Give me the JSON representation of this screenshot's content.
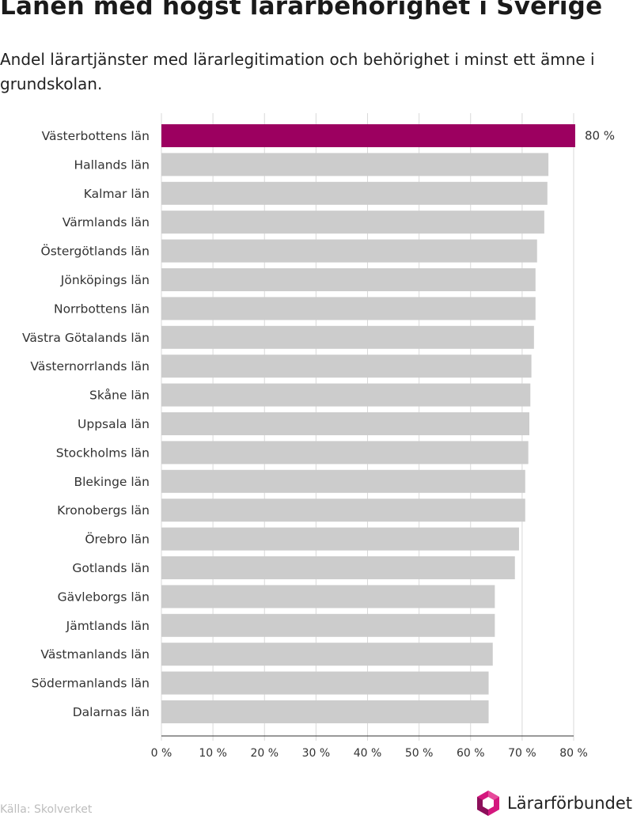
{
  "title": "Länen med högst lärarbehörighet i Sverige",
  "subtitle": "Andel lärartjänster med lärarlegitimation och behörighet i minst ett ämne i grundskolan.",
  "source": "Källa: Skolverket",
  "logo": {
    "text": "Lärarförbundet",
    "icon": "lararforbundet-logo-icon"
  },
  "colors": {
    "highlight": "#9c0060",
    "bar": "#cccccc",
    "grid": "#d9d9d9",
    "text": "#333333"
  },
  "chart_data": {
    "type": "bar",
    "orientation": "horizontal",
    "categories": [
      "Västerbottens län",
      "Hallands län",
      "Kalmar län",
      "Värmlands län",
      "Östergötlands län",
      "Jönköpings län",
      "Norrbottens län",
      "Västra Götalands län",
      "Västernorrlands län",
      "Skåne län",
      "Uppsala län",
      "Stockholms län",
      "Blekinge län",
      "Kronobergs län",
      "Örebro län",
      "Gotlands län",
      "Gävleborgs län",
      "Jämtlands län",
      "Västmanlands län",
      "Södermanlands län",
      "Dalarnas län"
    ],
    "values": [
      80.3,
      75.1,
      74.9,
      74.3,
      72.9,
      72.6,
      72.6,
      72.3,
      71.8,
      71.6,
      71.4,
      71.2,
      70.6,
      70.6,
      69.4,
      68.6,
      64.7,
      64.7,
      64.3,
      63.5,
      63.5
    ],
    "highlight_index": 0,
    "value_labels": [
      {
        "index": 0,
        "text": "80 %"
      }
    ],
    "xlim": [
      0,
      80
    ],
    "xticks": [
      0,
      10,
      20,
      30,
      40,
      50,
      60,
      70,
      80
    ],
    "xtick_labels": [
      "0 %",
      "10 %",
      "20 %",
      "30 %",
      "40 %",
      "50 %",
      "60 %",
      "70 %",
      "80 %"
    ],
    "grid": true,
    "xlabel": "",
    "ylabel": ""
  }
}
